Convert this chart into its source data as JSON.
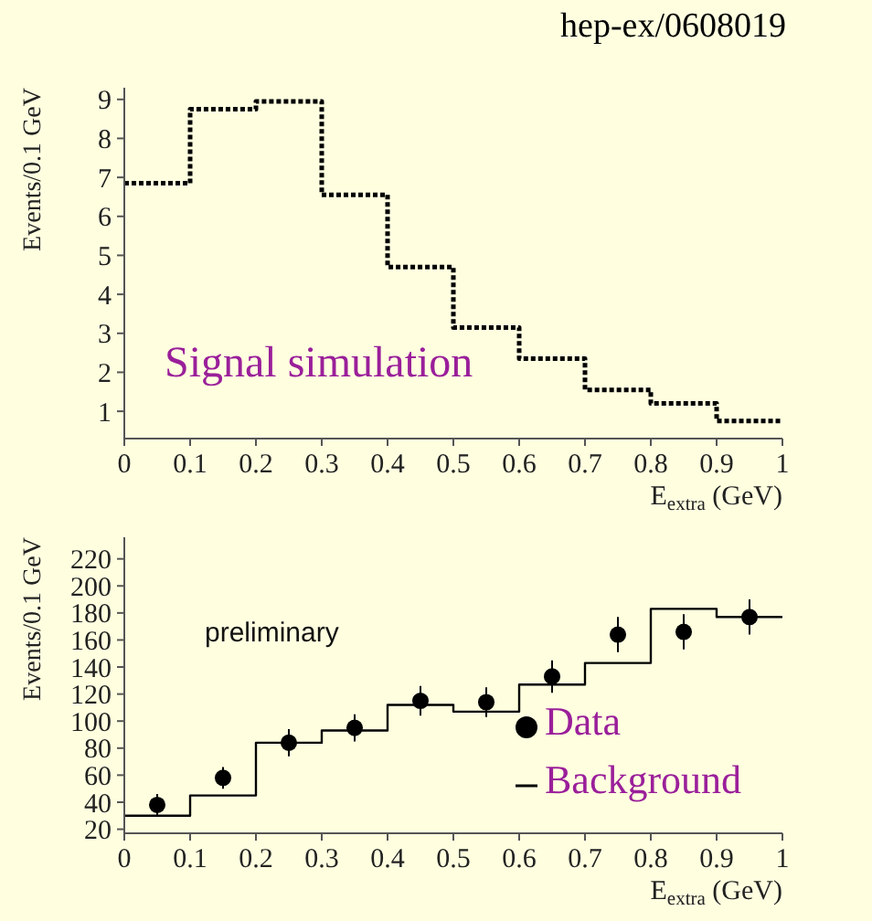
{
  "chart_data": [
    {
      "type": "histogram",
      "title": "hep-ex/0608019",
      "bins": [
        0,
        0.1,
        0.2,
        0.3,
        0.4,
        0.5,
        0.6,
        0.7,
        0.8,
        0.9,
        1.0
      ],
      "values": [
        6.85,
        8.75,
        8.95,
        6.55,
        4.7,
        3.15,
        2.35,
        1.55,
        1.2,
        0.75
      ],
      "color": "#000000",
      "line_style": "dotted",
      "xlim": [
        0,
        1
      ],
      "xticks": [
        0,
        0.1,
        0.2,
        0.3,
        0.4,
        0.5,
        0.6,
        0.7,
        0.8,
        0.9,
        1
      ],
      "ylim": [
        0.3,
        9.3
      ],
      "yticks": [
        1,
        2,
        3,
        4,
        5,
        6,
        7,
        8,
        9
      ],
      "xlabel": "E$_{extra}$ (GeV)",
      "ylabel": "Events/0.1 GeV",
      "annotations": [
        "Signal simulation"
      ],
      "legend": false
    },
    {
      "type": "histogram",
      "series": [
        {
          "type": "scatter",
          "name": "Data",
          "color": "#000000",
          "marker": "circle",
          "x": [
            0.05,
            0.15,
            0.25,
            0.35,
            0.45,
            0.55,
            0.65,
            0.75,
            0.85,
            0.95
          ],
          "values": [
            38,
            58,
            84,
            95,
            115,
            114,
            133,
            164,
            166,
            177
          ],
          "errors": [
            8,
            8,
            10,
            10,
            11,
            11,
            12,
            13,
            13,
            13
          ]
        },
        {
          "type": "histogram",
          "name": "Background",
          "color": "#000000",
          "bins": [
            0,
            0.1,
            0.2,
            0.3,
            0.4,
            0.5,
            0.6,
            0.7,
            0.8,
            0.9,
            1.0
          ],
          "values": [
            30,
            45,
            84,
            93,
            112,
            107,
            127,
            143,
            183,
            177
          ]
        }
      ],
      "xlim": [
        0,
        1
      ],
      "xticks": [
        0,
        0.1,
        0.2,
        0.3,
        0.4,
        0.5,
        0.6,
        0.7,
        0.8,
        0.9,
        1
      ],
      "ylim": [
        17,
        236
      ],
      "yticks": [
        20,
        40,
        60,
        80,
        100,
        120,
        140,
        160,
        180,
        200,
        220
      ],
      "xlabel": "E$_{extra}$ (GeV)",
      "ylabel": "Events/0.1 GeV",
      "annotations": [
        "preliminary"
      ],
      "legend": "bottom right"
    }
  ]
}
